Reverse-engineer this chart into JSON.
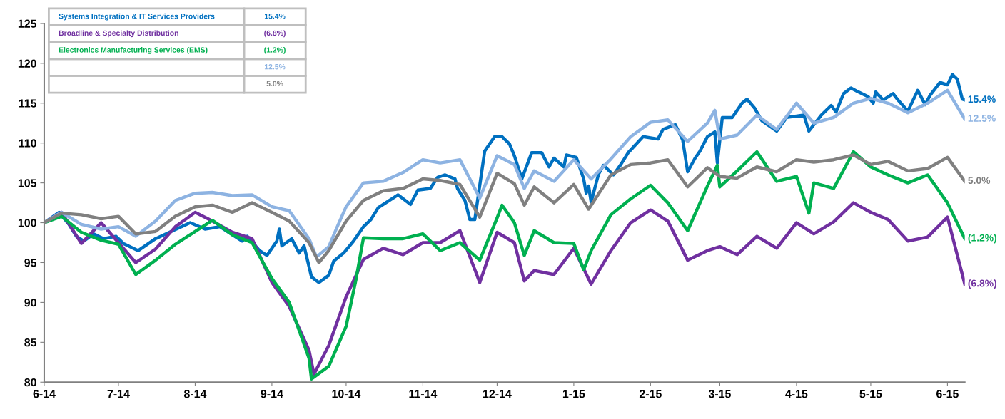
{
  "chart_data": {
    "type": "line",
    "line_style": "solid",
    "legend": "top left",
    "xlim": [
      "2014-06-01",
      "2015-06-08"
    ],
    "ylim": [
      80,
      125
    ],
    "xticks": [
      {
        "value": "2014-06-01",
        "label": "6-14"
      },
      {
        "value": "2014-07-01",
        "label": "7-14"
      },
      {
        "value": "2014-08-01",
        "label": "8-14"
      },
      {
        "value": "2014-09-01",
        "label": "9-14"
      },
      {
        "value": "2014-10-01",
        "label": "10-14"
      },
      {
        "value": "2014-11-01",
        "label": "11-14"
      },
      {
        "value": "2014-12-01",
        "label": "12-14"
      },
      {
        "value": "2015-01-01",
        "label": "1-15"
      },
      {
        "value": "2015-02-01",
        "label": "2-15"
      },
      {
        "value": "2015-03-01",
        "label": "3-15"
      },
      {
        "value": "2015-04-01",
        "label": "4-15"
      },
      {
        "value": "2015-05-01",
        "label": "5-15"
      },
      {
        "value": "2015-06-01",
        "label": "6-15"
      }
    ],
    "yticks": [
      80,
      85,
      90,
      95,
      100,
      105,
      110,
      115,
      120,
      125
    ],
    "series": [
      {
        "name": "Systems Integration & IT Services Providers",
        "color": "#0070c0",
        "x": [
          "2014-06-01",
          "2014-06-07",
          "2014-06-11",
          "2014-06-14",
          "2014-06-17",
          "2014-06-21",
          "2014-06-25",
          "2014-06-30",
          "2014-07-03",
          "2014-07-09",
          "2014-07-16",
          "2014-07-23",
          "2014-07-30",
          "2014-08-05",
          "2014-08-11",
          "2014-08-20",
          "2014-08-22",
          "2014-08-27",
          "2014-08-30",
          "2014-09-03",
          "2014-09-04",
          "2014-09-05",
          "2014-09-09",
          "2014-09-12",
          "2014-09-14",
          "2014-09-17",
          "2014-09-20",
          "2014-09-24",
          "2014-09-26",
          "2014-09-30",
          "2014-10-04",
          "2014-10-08",
          "2014-10-11",
          "2014-10-14",
          "2014-10-17",
          "2014-10-22",
          "2014-10-27",
          "2014-10-30",
          "2014-11-04",
          "2014-11-07",
          "2014-11-10",
          "2014-11-14",
          "2014-11-15",
          "2014-11-18",
          "2014-11-20",
          "2014-11-22",
          "2014-11-26",
          "2014-11-30",
          "2014-12-03",
          "2014-12-06",
          "2014-12-08",
          "2014-12-11",
          "2014-12-15",
          "2014-12-19",
          "2014-12-22",
          "2014-12-24",
          "2014-12-28",
          "2014-12-29",
          "2015-01-02",
          "2015-01-05",
          "2015-01-06",
          "2015-01-07",
          "2015-01-08",
          "2015-01-11",
          "2015-01-13",
          "2015-01-17",
          "2015-01-20",
          "2015-01-23",
          "2015-01-29",
          "2015-02-04",
          "2015-02-06",
          "2015-02-11",
          "2015-02-14",
          "2015-02-16",
          "2015-02-19",
          "2015-02-21",
          "2015-02-24",
          "2015-02-27",
          "2015-02-28",
          "2015-03-02",
          "2015-03-06",
          "2015-03-10",
          "2015-03-12",
          "2015-03-15",
          "2015-03-18",
          "2015-03-24",
          "2015-03-28",
          "2015-04-04",
          "2015-04-06",
          "2015-04-11",
          "2015-04-15",
          "2015-04-17",
          "2015-04-20",
          "2015-04-23",
          "2015-04-26",
          "2015-04-30",
          "2015-05-02",
          "2015-05-03",
          "2015-05-06",
          "2015-05-10",
          "2015-05-12",
          "2015-05-16",
          "2015-05-20",
          "2015-05-23",
          "2015-05-25",
          "2015-05-29",
          "2015-06-01",
          "2015-06-03",
          "2015-06-05",
          "2015-06-07",
          "2015-06-08"
        ],
        "values": [
          100,
          101.3,
          99.8,
          98.3,
          97.7,
          98.6,
          98,
          98.3,
          97.4,
          96.5,
          98,
          99,
          100,
          99.2,
          99.5,
          97.7,
          98.3,
          96.5,
          95.9,
          97.7,
          99.2,
          97.1,
          98,
          96.2,
          97.1,
          93.2,
          92.5,
          93.4,
          95.2,
          96.2,
          97.7,
          99.5,
          100.4,
          101.9,
          102.5,
          103.5,
          102.3,
          104.1,
          104.3,
          105.7,
          106,
          105.5,
          104.3,
          102.8,
          100.4,
          100.4,
          109,
          110.8,
          110.8,
          109.9,
          108.4,
          105.5,
          108.8,
          108.8,
          107,
          108.1,
          107,
          108.5,
          108.2,
          105.5,
          103.7,
          104.6,
          102.6,
          106.1,
          107.2,
          106,
          107.3,
          108.8,
          110.8,
          110.5,
          111.7,
          112.3,
          110.4,
          106.4,
          108.1,
          109,
          110.8,
          111.4,
          107.5,
          113.2,
          113.2,
          115,
          115.5,
          114.4,
          112.8,
          111.5,
          113.2,
          113.5,
          111.5,
          113.5,
          114.7,
          113.9,
          116.2,
          116.9,
          116.4,
          115.8,
          115,
          116.4,
          115.4,
          116.2,
          115.4,
          114,
          116.6,
          114.8,
          116,
          117.6,
          117.3,
          118.6,
          118,
          115.5,
          115.4
        ]
      },
      {
        "name": "Broadline & Specialty Distribution",
        "color": "#7030a0",
        "x": [
          "2014-06-01",
          "2014-06-08",
          "2014-06-16",
          "2014-06-24",
          "2014-07-01",
          "2014-07-08",
          "2014-07-16",
          "2014-07-24",
          "2014-08-01",
          "2014-08-08",
          "2014-08-16",
          "2014-08-24",
          "2014-09-01",
          "2014-09-08",
          "2014-09-16",
          "2014-09-18",
          "2014-09-24",
          "2014-10-01",
          "2014-10-08",
          "2014-10-16",
          "2014-10-24",
          "2014-11-01",
          "2014-11-08",
          "2014-11-16",
          "2014-11-24",
          "2014-12-01",
          "2014-12-08",
          "2014-12-12",
          "2014-12-16",
          "2014-12-24",
          "2015-01-01",
          "2015-01-08",
          "2015-01-16",
          "2015-01-24",
          "2015-02-01",
          "2015-02-08",
          "2015-02-16",
          "2015-02-24",
          "2015-03-01",
          "2015-03-08",
          "2015-03-16",
          "2015-03-24",
          "2015-04-01",
          "2015-04-08",
          "2015-04-16",
          "2015-04-24",
          "2015-05-01",
          "2015-05-08",
          "2015-05-16",
          "2015-05-24",
          "2015-06-01",
          "2015-06-08"
        ],
        "values": [
          100,
          101.3,
          97.4,
          100,
          97.5,
          95,
          96.7,
          99.5,
          101.3,
          100.2,
          98.8,
          98,
          92.5,
          89.5,
          84,
          81,
          84.6,
          90.7,
          95.4,
          96.8,
          96,
          97.5,
          97.5,
          99,
          92.5,
          98.8,
          97.5,
          92.7,
          94,
          93.5,
          96.8,
          92.3,
          96.5,
          100,
          101.6,
          100.2,
          95.3,
          96.5,
          97,
          96,
          98.3,
          96.8,
          100,
          98.6,
          100.1,
          102.5,
          101.3,
          100.4,
          97.7,
          98.2,
          100.7,
          92.3
        ]
      },
      {
        "name": "Electronics Manufacturing Services (EMS)",
        "color": "#00b050",
        "x": [
          "2014-06-01",
          "2014-06-08",
          "2014-06-16",
          "2014-06-24",
          "2014-07-01",
          "2014-07-08",
          "2014-07-16",
          "2014-07-24",
          "2014-08-01",
          "2014-08-08",
          "2014-08-16",
          "2014-08-24",
          "2014-09-01",
          "2014-09-08",
          "2014-09-16",
          "2014-09-17",
          "2014-09-24",
          "2014-10-01",
          "2014-10-05",
          "2014-10-08",
          "2014-10-16",
          "2014-10-24",
          "2014-11-01",
          "2014-11-08",
          "2014-11-16",
          "2014-11-24",
          "2014-12-01",
          "2014-12-03",
          "2014-12-08",
          "2014-12-12",
          "2014-12-16",
          "2014-12-24",
          "2015-01-01",
          "2015-01-05",
          "2015-01-08",
          "2015-01-16",
          "2015-01-24",
          "2015-02-01",
          "2015-02-08",
          "2015-02-16",
          "2015-02-24",
          "2015-02-28",
          "2015-03-01",
          "2015-03-08",
          "2015-03-16",
          "2015-03-24",
          "2015-04-01",
          "2015-04-06",
          "2015-04-08",
          "2015-04-16",
          "2015-04-24",
          "2015-05-01",
          "2015-05-08",
          "2015-05-16",
          "2015-05-24",
          "2015-06-01",
          "2015-06-08"
        ],
        "values": [
          100,
          100.8,
          98.8,
          97.8,
          97.3,
          93.5,
          95.3,
          97.3,
          98.9,
          100.3,
          98.5,
          97.5,
          93,
          90,
          83,
          80.4,
          82,
          87,
          92.9,
          98.1,
          98,
          98,
          98.6,
          96.5,
          97.5,
          95.3,
          100.6,
          102.2,
          100,
          95.9,
          99,
          97.5,
          97.4,
          94.1,
          96.5,
          101,
          103,
          104.7,
          102.5,
          99,
          104.6,
          107.2,
          104.5,
          106.5,
          108.9,
          105.2,
          105.8,
          101.2,
          105,
          104.3,
          108.9,
          107,
          106,
          105,
          106,
          102.5,
          98
        ]
      },
      {
        "color": "#8db3e2",
        "x": [
          "2014-06-01",
          "2014-06-08",
          "2014-06-16",
          "2014-06-24",
          "2014-07-01",
          "2014-07-08",
          "2014-07-16",
          "2014-07-24",
          "2014-08-01",
          "2014-08-08",
          "2014-08-16",
          "2014-08-24",
          "2014-09-01",
          "2014-09-08",
          "2014-09-16",
          "2014-09-19",
          "2014-09-24",
          "2014-09-27",
          "2014-10-01",
          "2014-10-08",
          "2014-10-16",
          "2014-10-24",
          "2014-11-01",
          "2014-11-08",
          "2014-11-16",
          "2014-11-24",
          "2014-12-01",
          "2014-12-08",
          "2014-12-12",
          "2014-12-16",
          "2014-12-24",
          "2015-01-01",
          "2015-01-08",
          "2015-01-16",
          "2015-01-24",
          "2015-02-01",
          "2015-02-08",
          "2015-02-16",
          "2015-02-24",
          "2015-02-27",
          "2015-03-01",
          "2015-03-08",
          "2015-03-16",
          "2015-03-24",
          "2015-04-01",
          "2015-04-08",
          "2015-04-16",
          "2015-04-24",
          "2015-05-01",
          "2015-05-08",
          "2015-05-16",
          "2015-05-24",
          "2015-06-01",
          "2015-06-08"
        ],
        "values": [
          100,
          101.3,
          99.8,
          99.2,
          99.5,
          98.3,
          100.2,
          102.8,
          103.7,
          103.8,
          103.4,
          103.5,
          102,
          101.5,
          98,
          95.7,
          97,
          99.2,
          102,
          105,
          105.2,
          106.3,
          107.9,
          107.5,
          107.9,
          103.1,
          108.4,
          107.3,
          104.3,
          106.5,
          105.2,
          107.9,
          105.5,
          108,
          110.8,
          112.6,
          112.9,
          110.2,
          112.5,
          114.1,
          110.5,
          111,
          113.5,
          111.7,
          115,
          112.5,
          113.2,
          115,
          115.6,
          115,
          113.8,
          115,
          116.6,
          113
        ]
      },
      {
        "color": "#808080",
        "x": [
          "2014-06-01",
          "2014-06-08",
          "2014-06-16",
          "2014-06-24",
          "2014-07-01",
          "2014-07-08",
          "2014-07-16",
          "2014-07-24",
          "2014-08-01",
          "2014-08-08",
          "2014-08-16",
          "2014-08-24",
          "2014-09-01",
          "2014-09-08",
          "2014-09-16",
          "2014-09-20",
          "2014-09-24",
          "2014-10-01",
          "2014-10-08",
          "2014-10-16",
          "2014-10-24",
          "2014-11-01",
          "2014-11-08",
          "2014-11-16",
          "2014-11-24",
          "2014-12-01",
          "2014-12-08",
          "2014-12-12",
          "2014-12-16",
          "2014-12-24",
          "2015-01-01",
          "2015-01-07",
          "2015-01-16",
          "2015-01-24",
          "2015-02-01",
          "2015-02-08",
          "2015-02-16",
          "2015-02-24",
          "2015-03-01",
          "2015-03-08",
          "2015-03-16",
          "2015-03-24",
          "2015-04-01",
          "2015-04-08",
          "2015-04-16",
          "2015-04-24",
          "2015-05-01",
          "2015-05-08",
          "2015-05-16",
          "2015-05-24",
          "2015-06-01",
          "2015-06-08"
        ],
        "values": [
          100,
          101.2,
          101,
          100.5,
          100.8,
          98.6,
          98.9,
          100.8,
          102,
          102.2,
          101.3,
          102.5,
          101.3,
          100.2,
          97.5,
          95,
          96.5,
          100.2,
          102.8,
          104,
          104.3,
          105.5,
          105.3,
          104.8,
          100.7,
          106.2,
          104.9,
          102.2,
          104.5,
          102.5,
          104.8,
          101.7,
          106,
          107.3,
          107.5,
          107.9,
          104.5,
          106.9,
          105.8,
          105.6,
          107,
          106.4,
          107.9,
          107.6,
          107.9,
          108.5,
          107.3,
          107.7,
          106.5,
          106.8,
          108.2,
          105.2
        ]
      }
    ],
    "annotations": [
      {
        "text": "15.4%",
        "x": "2015-06-08",
        "y": 115.4
      },
      {
        "text": "(6.8%)",
        "x": "2015-06-08",
        "y": 92.3
      },
      {
        "text": "(1.2%)",
        "x": "2015-06-08",
        "y": 98
      },
      {
        "text": "12.5%",
        "x": "2015-06-08",
        "y": 113
      },
      {
        "text": "5.0%",
        "x": "2015-06-08",
        "y": 105.2
      }
    ]
  }
}
